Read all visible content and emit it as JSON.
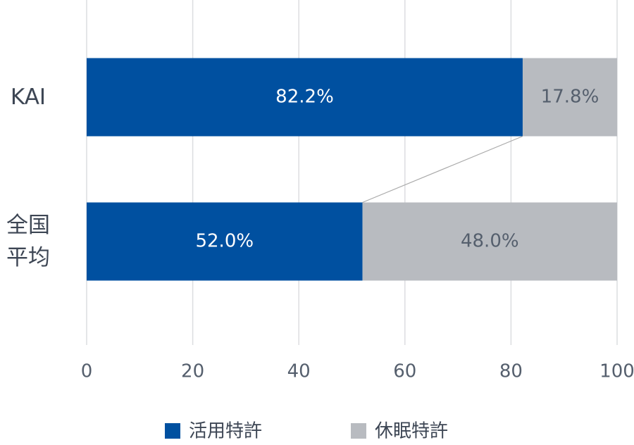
{
  "chart_data": {
    "type": "stacked-barh",
    "categories": [
      "KAI",
      "全国平均"
    ],
    "series": [
      {
        "name": "活用特許",
        "color": "#0050a0",
        "values": [
          82.2,
          52.0
        ],
        "value_labels": [
          "82.2%",
          "52.0%"
        ]
      },
      {
        "name": "休眠特許",
        "color": "#b8bbc0",
        "values": [
          17.8,
          48.0
        ],
        "value_labels": [
          "17.8%",
          "48.0%"
        ]
      }
    ],
    "xlim": [
      0,
      100
    ],
    "xticks": [
      0,
      20,
      40,
      60,
      80,
      100
    ],
    "grid": true
  }
}
